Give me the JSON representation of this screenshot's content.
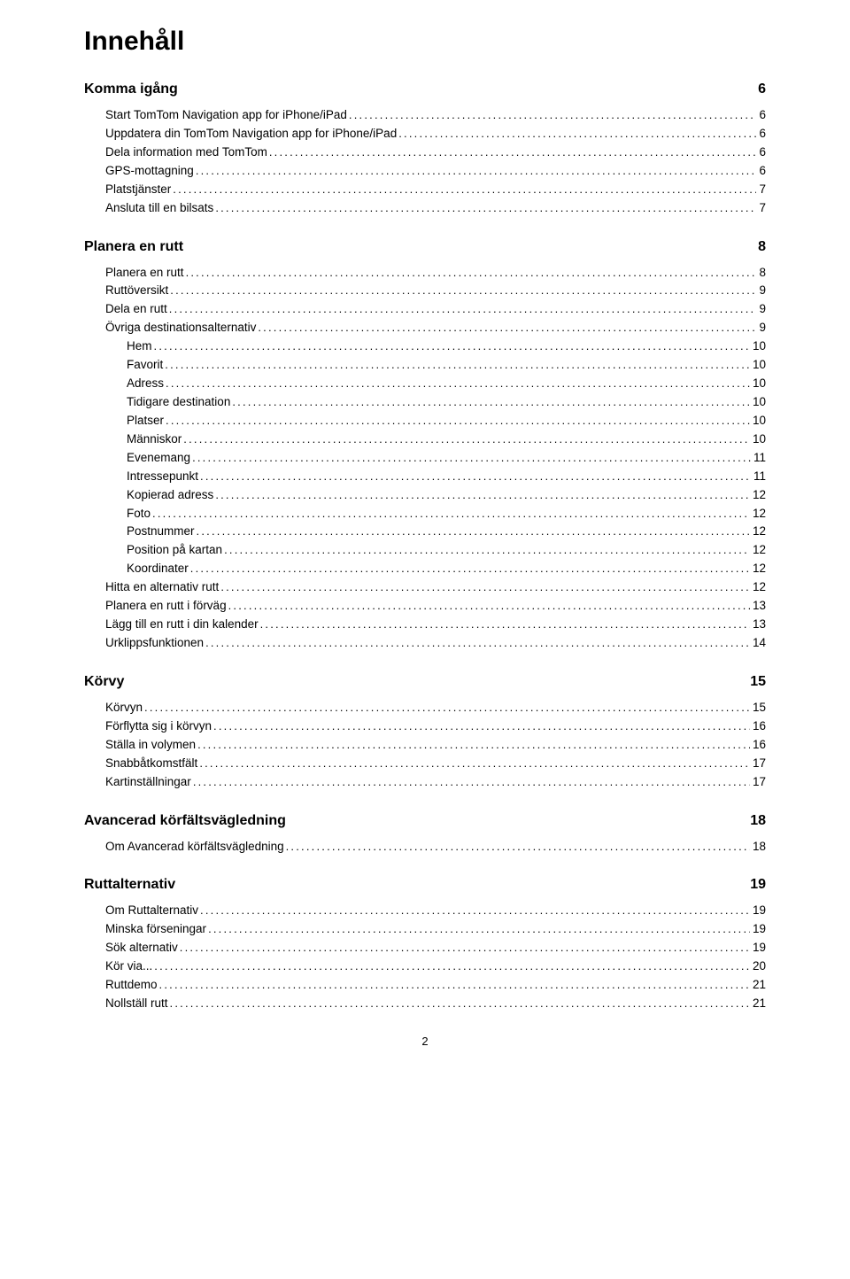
{
  "title": "Innehåll",
  "page_number": "2",
  "sections": [
    {
      "title": "Komma igång",
      "page": "6",
      "entries": [
        {
          "label": "Start TomTom Navigation app for iPhone/iPad",
          "page": "6",
          "indent": 0
        },
        {
          "label": "Uppdatera din TomTom Navigation app for iPhone/iPad",
          "page": "6",
          "indent": 0
        },
        {
          "label": "Dela information med TomTom",
          "page": "6",
          "indent": 0
        },
        {
          "label": "GPS-mottagning",
          "page": "6",
          "indent": 0
        },
        {
          "label": "Platstjänster",
          "page": "7",
          "indent": 0
        },
        {
          "label": "Ansluta till en bilsats",
          "page": "7",
          "indent": 0
        }
      ]
    },
    {
      "title": "Planera en rutt",
      "page": "8",
      "entries": [
        {
          "label": "Planera en rutt",
          "page": "8",
          "indent": 0
        },
        {
          "label": "Ruttöversikt",
          "page": "9",
          "indent": 0
        },
        {
          "label": "Dela en rutt",
          "page": "9",
          "indent": 0
        },
        {
          "label": "Övriga destinationsalternativ",
          "page": "9",
          "indent": 0
        },
        {
          "label": "Hem",
          "page": "10",
          "indent": 1
        },
        {
          "label": "Favorit",
          "page": "10",
          "indent": 1
        },
        {
          "label": "Adress",
          "page": "10",
          "indent": 1
        },
        {
          "label": "Tidigare destination",
          "page": "10",
          "indent": 1
        },
        {
          "label": "Platser",
          "page": "10",
          "indent": 1
        },
        {
          "label": "Människor",
          "page": "10",
          "indent": 1
        },
        {
          "label": "Evenemang",
          "page": "11",
          "indent": 1
        },
        {
          "label": "Intressepunkt",
          "page": "11",
          "indent": 1
        },
        {
          "label": "Kopierad adress",
          "page": "12",
          "indent": 1
        },
        {
          "label": "Foto",
          "page": "12",
          "indent": 1
        },
        {
          "label": "Postnummer",
          "page": "12",
          "indent": 1
        },
        {
          "label": "Position på kartan",
          "page": "12",
          "indent": 1
        },
        {
          "label": "Koordinater",
          "page": "12",
          "indent": 1
        },
        {
          "label": "Hitta en alternativ rutt",
          "page": "12",
          "indent": 0
        },
        {
          "label": "Planera en rutt i förväg",
          "page": "13",
          "indent": 0
        },
        {
          "label": "Lägg till en rutt i din kalender",
          "page": "13",
          "indent": 0
        },
        {
          "label": "Urklippsfunktionen",
          "page": "14",
          "indent": 0
        }
      ]
    },
    {
      "title": "Körvy",
      "page": "15",
      "entries": [
        {
          "label": "Körvyn",
          "page": "15",
          "indent": 0
        },
        {
          "label": "Förflytta sig i körvyn",
          "page": "16",
          "indent": 0
        },
        {
          "label": "Ställa in volymen",
          "page": "16",
          "indent": 0
        },
        {
          "label": "Snabbåtkomstfält",
          "page": "17",
          "indent": 0
        },
        {
          "label": "Kartinställningar",
          "page": "17",
          "indent": 0
        }
      ]
    },
    {
      "title": "Avancerad körfältsvägledning",
      "page": "18",
      "entries": [
        {
          "label": "Om Avancerad körfältsvägledning",
          "page": "18",
          "indent": 0
        }
      ]
    },
    {
      "title": "Ruttalternativ",
      "page": "19",
      "entries": [
        {
          "label": "Om Ruttalternativ",
          "page": "19",
          "indent": 0
        },
        {
          "label": "Minska förseningar",
          "page": "19",
          "indent": 0
        },
        {
          "label": "Sök alternativ",
          "page": "19",
          "indent": 0
        },
        {
          "label": "Kör via...",
          "page": "20",
          "indent": 0
        },
        {
          "label": "Ruttdemo",
          "page": "21",
          "indent": 0
        },
        {
          "label": "Nollställ rutt",
          "page": "21",
          "indent": 0
        }
      ]
    }
  ]
}
